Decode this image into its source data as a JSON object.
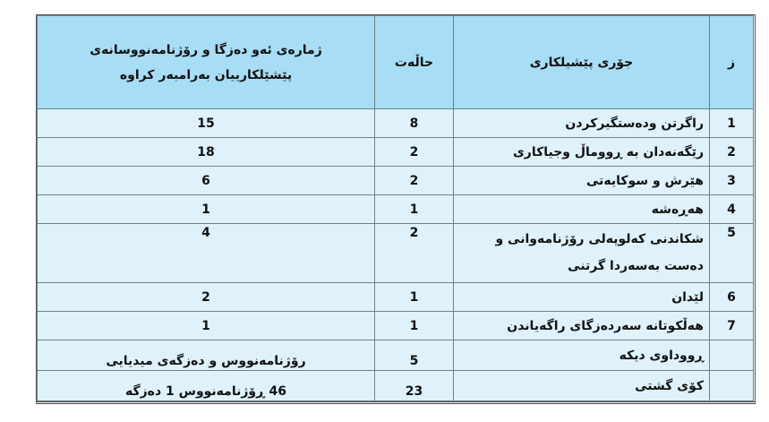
{
  "table": {
    "headers": {
      "index": "ز",
      "type": "جۆری پێشیلکاری",
      "cases": "حاڵەت",
      "count": "ژمارەی ئەو دەزگا و رۆژنامەنووسانەی پێشێلکارییان بەرامبەر کراوە"
    },
    "rows": [
      {
        "index": "1",
        "type": "راگرتن ودەستگیرکردن",
        "cases": "8",
        "count": "15"
      },
      {
        "index": "2",
        "type": "رێگەنەدان بە ڕووماڵ  وجیاکاری",
        "cases": "2",
        "count": "18"
      },
      {
        "index": "3",
        "type": "هێرش و سوکایەتی",
        "cases": "2",
        "count": "6"
      },
      {
        "index": "4",
        "type": "هەڕەشە",
        "cases": "1",
        "count": "1"
      },
      {
        "index": "5",
        "type": "شکاندنی کەلوپەلی رۆژنامەوانی و دەست بەسەردا گرتنی",
        "cases": "2",
        "count": "4"
      },
      {
        "index": "6",
        "type": "لێدان",
        "cases": "1",
        "count": "2"
      },
      {
        "index": "7",
        "type": "هەڵکوتانە سەردەزگای راگەیاندن",
        "cases": "1",
        "count": "1"
      },
      {
        "index": "",
        "type": "ڕووداوی دیکە",
        "cases": "5",
        "count": "رۆژنامەنووس و دەزگەی میدیایی"
      },
      {
        "index": "",
        "type": "کۆی گشتی",
        "cases": "23",
        "count": "46 ڕۆژنامەنووس  1 دەزگە"
      }
    ]
  },
  "colors": {
    "header_bg": "#a8ddf6",
    "row_bg": "#dff2fb",
    "border": "#6f7f88"
  }
}
